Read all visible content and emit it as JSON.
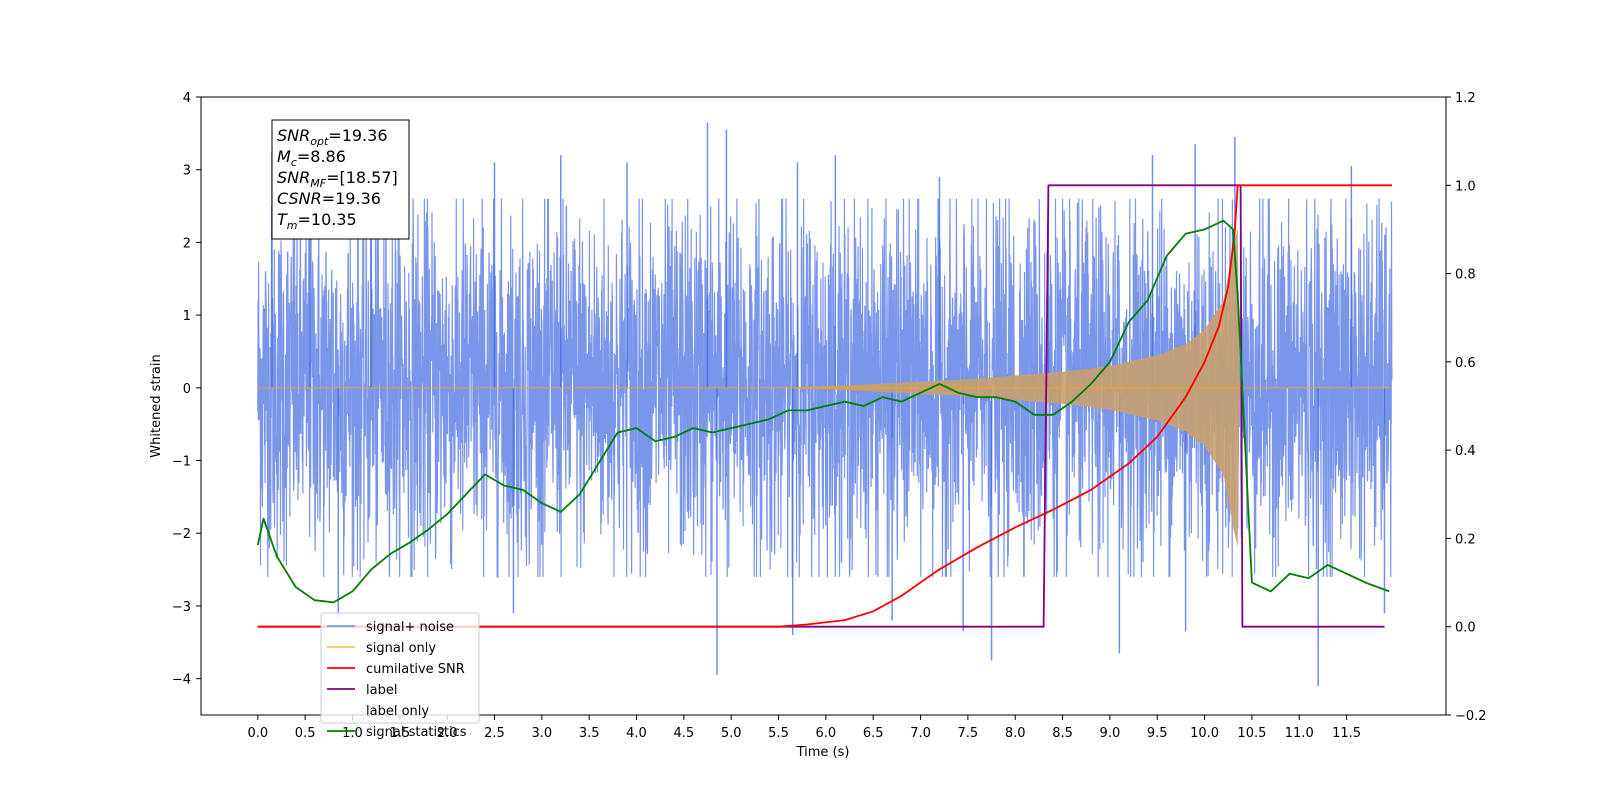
{
  "chart_data": {
    "type": "line",
    "xlabel": "Time (s)",
    "ylabel": "Whitened strain",
    "xlim": [
      -0.6,
      12.55
    ],
    "ylim_left": [
      -4.5,
      4.0
    ],
    "ylim_right": [
      -0.2,
      1.2
    ],
    "x_ticks": [
      0.0,
      0.5,
      1.0,
      1.5,
      2.0,
      2.5,
      3.0,
      3.5,
      4.0,
      4.5,
      5.0,
      5.5,
      6.0,
      6.5,
      7.0,
      7.5,
      8.0,
      8.5,
      9.0,
      9.5,
      10.0,
      10.5,
      11.0,
      11.5
    ],
    "x_tick_labels": [
      "0.0",
      "0.5",
      "1.0",
      "1.5",
      "2.0",
      "2.5",
      "3.0",
      "3.5",
      "4.0",
      "4.5",
      "5.0",
      "5.5",
      "6.0",
      "6.5",
      "7.0",
      "7.5",
      "8.0",
      "8.5",
      "9.0",
      "9.5",
      "10.0",
      "10.5",
      "11.0",
      "11.5"
    ],
    "y_ticks_left": [
      4,
      3,
      2,
      1,
      0,
      -1,
      -2,
      -3,
      -4
    ],
    "y_tick_labels_left": [
      "4",
      "3",
      "2",
      "1",
      "0",
      "−1",
      "−2",
      "−3",
      "−4"
    ],
    "y_ticks_right": [
      1.2,
      1.0,
      0.8,
      0.6,
      0.4,
      0.2,
      0.0,
      -0.2
    ],
    "y_tick_labels_right": [
      "1.2",
      "1.0",
      "0.8",
      "0.6",
      "0.4",
      "0.2",
      "0.0",
      "−0.2"
    ],
    "grid": false,
    "legend_position": "lower-left",
    "stats_box": [
      {
        "main": "SNR",
        "sub": "opt",
        "value": "=19.36"
      },
      {
        "main": "M",
        "sub": "c",
        "value": "=8.86"
      },
      {
        "main": "SNR",
        "sub": "MF",
        "value": "=[18.57]"
      },
      {
        "main": "CSNR",
        "sub": "",
        "value": "=19.36"
      },
      {
        "main": "T",
        "sub": "m",
        "value": "=10.35"
      }
    ],
    "series": [
      {
        "name": "signal+ noise",
        "axis": "left",
        "color": "#4169e1",
        "x_range": [
          0.0,
          11.98
        ],
        "typical_band": [
          -1.9,
          2.0
        ],
        "peak_spikes": [
          {
            "x": 0.15,
            "y": 3.25
          },
          {
            "x": 0.55,
            "y": 2.7
          },
          {
            "x": 1.2,
            "y": 2.9
          },
          {
            "x": 2.5,
            "y": 3.1
          },
          {
            "x": 3.2,
            "y": 3.2
          },
          {
            "x": 3.9,
            "y": 3.1
          },
          {
            "x": 4.75,
            "y": 3.65
          },
          {
            "x": 4.95,
            "y": 3.55
          },
          {
            "x": 5.7,
            "y": 3.1
          },
          {
            "x": 6.1,
            "y": 3.2
          },
          {
            "x": 7.2,
            "y": 2.9
          },
          {
            "x": 8.35,
            "y": 2.7
          },
          {
            "x": 9.45,
            "y": 3.2
          },
          {
            "x": 9.9,
            "y": 3.35
          },
          {
            "x": 10.32,
            "y": 3.45
          },
          {
            "x": 11.55,
            "y": 3.05
          },
          {
            "x": 0.85,
            "y": -3.15
          },
          {
            "x": 2.7,
            "y": -3.1
          },
          {
            "x": 4.85,
            "y": -3.95
          },
          {
            "x": 5.65,
            "y": -3.4
          },
          {
            "x": 7.75,
            "y": -3.75
          },
          {
            "x": 9.1,
            "y": -3.65
          },
          {
            "x": 9.8,
            "y": -3.35
          },
          {
            "x": 11.2,
            "y": -4.1
          },
          {
            "x": 11.9,
            "y": -3.1
          },
          {
            "x": 6.7,
            "y": -3.2
          },
          {
            "x": 7.45,
            "y": -3.35
          }
        ]
      },
      {
        "name": "signal only",
        "axis": "left",
        "color": "#ffa500",
        "x_range": [
          0.0,
          11.98
        ],
        "merger_time": 10.35,
        "envelope": [
          {
            "x": 5.5,
            "a": 0.0
          },
          {
            "x": 6.5,
            "a": 0.05
          },
          {
            "x": 7.5,
            "a": 0.12
          },
          {
            "x": 8.5,
            "a": 0.22
          },
          {
            "x": 9.0,
            "a": 0.3
          },
          {
            "x": 9.5,
            "a": 0.45
          },
          {
            "x": 9.8,
            "a": 0.6
          },
          {
            "x": 10.0,
            "a": 0.8
          },
          {
            "x": 10.2,
            "a": 1.2
          },
          {
            "x": 10.3,
            "a": 1.9
          },
          {
            "x": 10.35,
            "a": 2.2
          },
          {
            "x": 10.37,
            "a": 0.1
          },
          {
            "x": 10.42,
            "a": 0.0
          }
        ]
      },
      {
        "name": "cumilative SNR",
        "axis": "right",
        "color": "#ff0000",
        "x": [
          0.0,
          5.5,
          5.8,
          6.2,
          6.5,
          6.8,
          7.2,
          7.6,
          8.0,
          8.4,
          8.8,
          9.2,
          9.5,
          9.8,
          10.0,
          10.15,
          10.25,
          10.32,
          10.35,
          10.36,
          11.98
        ],
        "y": [
          0.0,
          0.0,
          0.005,
          0.015,
          0.035,
          0.07,
          0.13,
          0.18,
          0.225,
          0.265,
          0.31,
          0.37,
          0.43,
          0.52,
          0.6,
          0.68,
          0.77,
          0.9,
          1.0,
          1.0,
          1.0
        ]
      },
      {
        "name": "label",
        "axis": "right",
        "color": "#800080",
        "x": [
          0.0,
          8.3,
          8.35,
          10.38,
          10.4,
          11.9
        ],
        "y": [
          0.0,
          0.0,
          1.0,
          1.0,
          0.0,
          0.0
        ]
      },
      {
        "name": "label only",
        "axis": "right",
        "color": "#ffffff",
        "hidden": true
      },
      {
        "name": "signal statistics",
        "axis": "right",
        "color": "#008000",
        "x": [
          0.0,
          0.06,
          0.2,
          0.4,
          0.6,
          0.8,
          1.0,
          1.2,
          1.4,
          1.6,
          1.8,
          2.0,
          2.2,
          2.4,
          2.6,
          2.8,
          3.0,
          3.2,
          3.4,
          3.6,
          3.8,
          4.0,
          4.2,
          4.4,
          4.6,
          4.8,
          5.0,
          5.2,
          5.4,
          5.6,
          5.8,
          6.0,
          6.2,
          6.4,
          6.6,
          6.8,
          7.0,
          7.2,
          7.4,
          7.6,
          7.8,
          8.0,
          8.2,
          8.4,
          8.6,
          8.8,
          9.0,
          9.2,
          9.4,
          9.6,
          9.8,
          10.0,
          10.2,
          10.3,
          10.35,
          10.42,
          10.5,
          10.7,
          10.9,
          11.1,
          11.3,
          11.5,
          11.7,
          11.95
        ],
        "y": [
          0.185,
          0.245,
          0.16,
          0.09,
          0.06,
          0.055,
          0.08,
          0.13,
          0.165,
          0.19,
          0.22,
          0.255,
          0.3,
          0.345,
          0.32,
          0.31,
          0.28,
          0.26,
          0.3,
          0.37,
          0.44,
          0.45,
          0.42,
          0.43,
          0.45,
          0.44,
          0.45,
          0.46,
          0.47,
          0.49,
          0.49,
          0.5,
          0.51,
          0.5,
          0.52,
          0.51,
          0.53,
          0.55,
          0.53,
          0.52,
          0.52,
          0.51,
          0.48,
          0.48,
          0.51,
          0.55,
          0.6,
          0.69,
          0.74,
          0.84,
          0.89,
          0.9,
          0.92,
          0.9,
          0.75,
          0.45,
          0.1,
          0.08,
          0.12,
          0.11,
          0.14,
          0.12,
          0.1,
          0.08
        ]
      }
    ]
  }
}
